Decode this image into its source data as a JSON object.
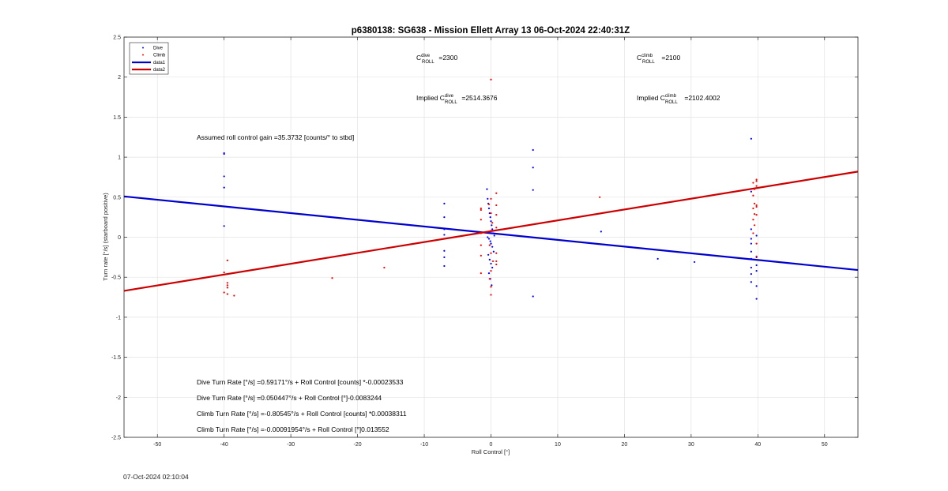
{
  "chart_data": {
    "type": "scatter",
    "title": "p6380138: SG638 - Mission Ellett Array 13 06-Oct-2024 22:40:31Z",
    "xlabel": "Roll Control [°]",
    "ylabel": "Turn rate [°/s] (starboard positive)",
    "xlim": [
      -55,
      55
    ],
    "ylim": [
      -2.5,
      2.5
    ],
    "xticks": [
      -50,
      -40,
      -30,
      -20,
      -10,
      0,
      10,
      20,
      30,
      40,
      50
    ],
    "yticks": [
      -2.5,
      -2,
      -1.5,
      -1,
      -0.5,
      0,
      0.5,
      1,
      1.5,
      2,
      2.5
    ],
    "xtick_labels": [
      "-50",
      "-40",
      "-30",
      "-20",
      "-10",
      "0",
      "10",
      "20",
      "30",
      "40",
      "50"
    ],
    "ytick_labels": [
      "-2.5",
      "-2",
      "-1.5",
      "-1",
      "-0.5",
      "0",
      "0.5",
      "1",
      "1.5",
      "2",
      "2.5"
    ],
    "grid": true,
    "legend_position": "top-left",
    "legend": [
      {
        "label": "Dive",
        "kind": "dots",
        "color": "#0000ff"
      },
      {
        "label": "Climb",
        "kind": "dots",
        "color": "#ff0000"
      },
      {
        "label": "data1",
        "kind": "line",
        "color": "#0000cc"
      },
      {
        "label": "data2",
        "kind": "line",
        "color": "#cc0000"
      }
    ],
    "series": [
      {
        "name": "Dive",
        "kind": "scatter",
        "color": "#0000ff",
        "points": [
          [
            -40,
            1.05
          ],
          [
            -40,
            1.04
          ],
          [
            -40,
            0.76
          ],
          [
            -40,
            0.62
          ],
          [
            -40,
            0.14
          ],
          [
            -7,
            0.42
          ],
          [
            -7,
            0.25
          ],
          [
            -7,
            0.1
          ],
          [
            -7,
            0.03
          ],
          [
            -7,
            -0.17
          ],
          [
            -7,
            -0.25
          ],
          [
            -7,
            -0.36
          ],
          [
            -0.6,
            0.6
          ],
          [
            -0.5,
            0.48
          ],
          [
            -0.4,
            0.42
          ],
          [
            -0.3,
            0.36
          ],
          [
            -0.2,
            0.3
          ],
          [
            -0.1,
            0.25
          ],
          [
            0,
            0.2
          ],
          [
            0.1,
            0.15
          ],
          [
            0.2,
            0.1
          ],
          [
            0.3,
            0.05
          ],
          [
            0.5,
            0.02
          ],
          [
            -0.5,
            0.0
          ],
          [
            -0.3,
            -0.02
          ],
          [
            -0.1,
            -0.05
          ],
          [
            0,
            -0.08
          ],
          [
            0.2,
            -0.12
          ],
          [
            0.4,
            -0.18
          ],
          [
            -0.4,
            -0.22
          ],
          [
            -0.2,
            -0.28
          ],
          [
            0,
            -0.33
          ],
          [
            0.2,
            -0.38
          ],
          [
            -0.3,
            -0.45
          ],
          [
            -0.1,
            -0.52
          ],
          [
            0.1,
            -0.6
          ],
          [
            6.3,
            1.09
          ],
          [
            6.3,
            0.87
          ],
          [
            6.3,
            0.59
          ],
          [
            6.3,
            -0.74
          ],
          [
            16.5,
            0.07
          ],
          [
            25,
            -0.27
          ],
          [
            30.5,
            -0.31
          ],
          [
            39,
            1.23
          ],
          [
            39,
            0.57
          ],
          [
            39,
            0.1
          ],
          [
            39,
            -0.02
          ],
          [
            39,
            -0.08
          ],
          [
            39,
            -0.18
          ],
          [
            39,
            -0.27
          ],
          [
            39,
            -0.38
          ],
          [
            39,
            -0.46
          ],
          [
            39,
            -0.56
          ],
          [
            39.8,
            0.02
          ],
          [
            39.8,
            -0.25
          ],
          [
            39.8,
            -0.35
          ],
          [
            39.8,
            -0.42
          ],
          [
            39.8,
            -0.61
          ],
          [
            39.8,
            -0.77
          ]
        ]
      },
      {
        "name": "Climb",
        "kind": "scatter",
        "color": "#ff0000",
        "points": [
          [
            -40,
            -0.44
          ],
          [
            -40,
            -0.69
          ],
          [
            -39.5,
            -0.29
          ],
          [
            -39.5,
            -0.57
          ],
          [
            -39.5,
            -0.6
          ],
          [
            -39.5,
            -0.63
          ],
          [
            -39.5,
            -0.71
          ],
          [
            -38.5,
            -0.73
          ],
          [
            -23.8,
            -0.51
          ],
          [
            -16,
            -0.38
          ],
          [
            -1.5,
            0.36
          ],
          [
            -1.5,
            0.34
          ],
          [
            -1.5,
            0.22
          ],
          [
            -1.5,
            0.05
          ],
          [
            -1.5,
            -0.1
          ],
          [
            -1.5,
            -0.23
          ],
          [
            -1.5,
            -0.45
          ],
          [
            0,
            1.97
          ],
          [
            0,
            0.48
          ],
          [
            -0.3,
            0.41
          ],
          [
            0,
            0.3
          ],
          [
            0.2,
            0.18
          ],
          [
            0,
            0.08
          ],
          [
            -0.2,
            -0.1
          ],
          [
            0,
            -0.2
          ],
          [
            0.3,
            -0.3
          ],
          [
            0,
            -0.42
          ],
          [
            -0.2,
            -0.52
          ],
          [
            0,
            -0.62
          ],
          [
            0,
            -0.72
          ],
          [
            0.8,
            0.55
          ],
          [
            0.8,
            0.4
          ],
          [
            0.8,
            0.28
          ],
          [
            0.8,
            0.12
          ],
          [
            0.8,
            -0.2
          ],
          [
            0.8,
            -0.3
          ],
          [
            0.8,
            -0.34
          ],
          [
            16.3,
            0.5
          ],
          [
            39.3,
            0.68
          ],
          [
            39.5,
            0.6
          ],
          [
            39.3,
            0.52
          ],
          [
            39.5,
            0.42
          ],
          [
            39.3,
            0.36
          ],
          [
            39.5,
            0.29
          ],
          [
            39.3,
            0.22
          ],
          [
            39.5,
            0.15
          ],
          [
            39.3,
            0.05
          ],
          [
            39.8,
            0.72
          ],
          [
            39.8,
            0.7
          ],
          [
            39.8,
            0.64
          ],
          [
            39.8,
            0.4
          ],
          [
            39.8,
            0.38
          ],
          [
            39.8,
            0.28
          ],
          [
            39.8,
            -0.08
          ],
          [
            39.8,
            -0.24
          ]
        ]
      },
      {
        "name": "data1",
        "kind": "line",
        "color": "#0000cc",
        "points": [
          [
            -55,
            0.51
          ],
          [
            55,
            -0.41
          ]
        ]
      },
      {
        "name": "data2",
        "kind": "line",
        "color": "#cc0000",
        "points": [
          [
            -55,
            -0.67
          ],
          [
            55,
            0.82
          ]
        ]
      }
    ]
  },
  "annotations": {
    "c_dive_base": "C",
    "c_dive_sup": "dive",
    "c_dive_sub": "ROLL",
    "c_dive_value": " =2300",
    "c_climb_base": "C",
    "c_climb_sup": "climb",
    "c_climb_sub": "ROLL",
    "c_climb_value": " =2100",
    "implied_prefix": "Implied C",
    "implied_dive_sup": "dive",
    "implied_dive_sub": "ROLL",
    "implied_dive_value": " =2514.3676",
    "implied_climb_sup": "climb",
    "implied_climb_sub": "ROLL",
    "implied_climb_value": " =2102.4002",
    "gain": "Assumed roll control gain =35.3732 [counts/° to stbd]",
    "eq_dive_counts": "Dive Turn Rate [°/s] =0.59171°/s + Roll Control [counts] *-0.00023533",
    "eq_dive_deg": "Dive Turn Rate [°/s] =0.050447°/s + Roll Control [°]-0.0083244",
    "eq_climb_counts": "Climb Turn Rate [°/s] =-0.80545°/s + Roll Control [counts] *0.00038311",
    "eq_climb_deg": "Climb Turn Rate [°/s] =-0.00091954°/s + Roll Control [°]0.013552"
  },
  "footer": {
    "timestamp": "07-Oct-2024 02:10:04"
  }
}
